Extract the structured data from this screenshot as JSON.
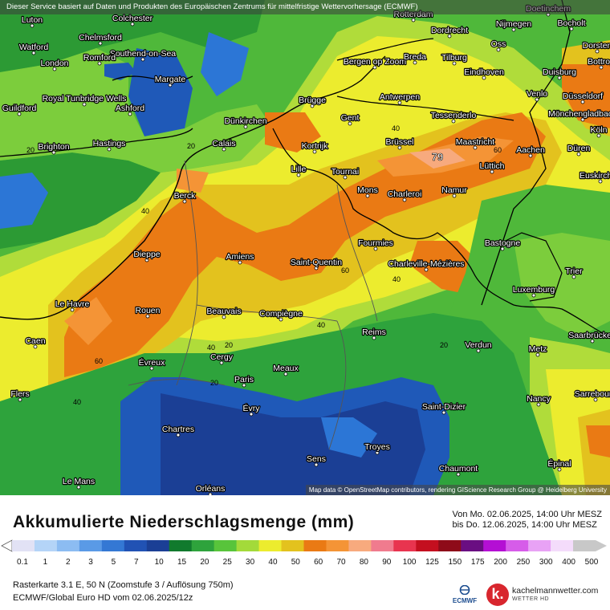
{
  "header": {
    "notice": "Dieser Service basiert auf Daten und Produkten des Europäischen Zentrums für mittelfristige Wettervorhersage (ECMWF)"
  },
  "map": {
    "attribution": "Map data © OpenStreetMap contributors, rendering GIScience Research Group @ Heidelberg University",
    "max_label": "79",
    "cities": [
      "Luton",
      "Colchester",
      "Watford",
      "Chelmsford",
      "Southend-on-Sea",
      "London",
      "Romford",
      "Margate",
      "Royal Tunbridge Wells",
      "Ashford",
      "Guildford",
      "Brighton",
      "Hastings",
      "Dünkirchen",
      "Calais",
      "Berck",
      "Dieppe",
      "Amiens",
      "Le Havre",
      "Rouen",
      "Caen",
      "Beauvais",
      "Évreux",
      "Flers",
      "Cergy",
      "Paris",
      "Meaux",
      "Évry",
      "Chartres",
      "Le Mans",
      "Orléans",
      "Sens",
      "Troyes",
      "Chaumont",
      "Saint-Dizier",
      "Reims",
      "Compiègne",
      "Saint-Quentin",
      "Fourmies",
      "Charleville-Mézières",
      "Verdun",
      "Metz",
      "Nancy",
      "Épinal",
      "Sarrebourg",
      "Saarbrücken",
      "Luxemburg",
      "Trier",
      "Bastogne",
      "Namur",
      "Charleroi",
      "Mons",
      "Tournai",
      "Lille",
      "Kortrijk",
      "Brügge",
      "Gent",
      "Brüssel",
      "Antwerpen",
      "Bergen op Zoom",
      "Breda",
      "Tilburg",
      "Dordrecht",
      "Rotterdam",
      "Nijmegen",
      "Oss",
      "Eindhoven",
      "Venlo",
      "Duisburg",
      "Düsseldorf",
      "Mönchengladbach",
      "Köln",
      "Düren",
      "Aachen",
      "Maastricht",
      "Lüttich",
      "Tessenderlo",
      "Euskirchen",
      "Bocholt",
      "Doetinchem",
      "Dorsten",
      "Bottrop"
    ],
    "isolines": [
      "20",
      "20",
      "40",
      "40",
      "40",
      "40",
      "60",
      "60",
      "60",
      "20",
      "20",
      "40",
      "40",
      "20"
    ]
  },
  "legend": {
    "title": "Akkumulierte Niederschlagsmenge (mm)",
    "period_from": "Von Mo. 02.06.2025, 14:00 Uhr MESZ",
    "period_to": "bis Do. 12.06.2025, 14:00 Uhr MESZ",
    "ticks": [
      "0.1",
      "1",
      "2",
      "3",
      "5",
      "7",
      "10",
      "15",
      "20",
      "25",
      "30",
      "40",
      "50",
      "60",
      "70",
      "80",
      "90",
      "100",
      "125",
      "150",
      "175",
      "200",
      "250",
      "300",
      "400",
      "500"
    ],
    "colors": [
      "#e2e2f5",
      "#b4d4f7",
      "#8cbcf2",
      "#5a9ae6",
      "#3478d4",
      "#2152b4",
      "#1b3f95",
      "#117a2d",
      "#2ea33c",
      "#58c43b",
      "#a3da3a",
      "#ecec2e",
      "#e3c21e",
      "#ea7a14",
      "#f49436",
      "#f7aa7e",
      "#f07b8e",
      "#e8344f",
      "#c40f1f",
      "#8e0b19",
      "#6a0e82",
      "#b40fd4",
      "#d65ce9",
      "#e8a2f5",
      "#f4dcfb",
      "#c8c8c8"
    ]
  },
  "info": {
    "line1": "Rasterkarte 3.1 E, 50 N  (Zoomstufe 3 / Auflösung 750m)",
    "line2": "ECMWF/Global Euro HD vom  02.06.2025/12z"
  },
  "logos": {
    "ecmwf": "ECMWF",
    "brand_letter": "k.",
    "brand_name": "kachelmannwetter.com",
    "brand_sub": "WETTER HD"
  }
}
